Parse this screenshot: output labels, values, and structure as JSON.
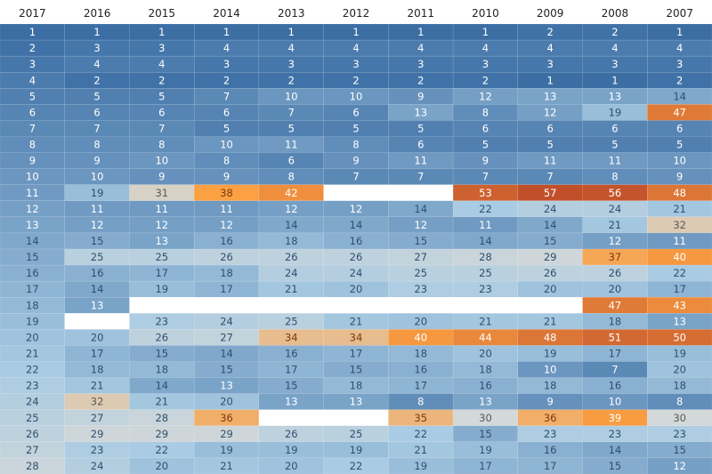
{
  "chart_data": {
    "type": "heatmap",
    "columns": [
      "2017",
      "2016",
      "2015",
      "2014",
      "2013",
      "2012",
      "2011",
      "2010",
      "2009",
      "2008",
      "2007"
    ],
    "color_scale": {
      "low": "#3c6ea4",
      "mid": "#a9cbe3",
      "neutral": "#d3d8d8",
      "warm": "#fba043",
      "high": "#c1502a",
      "empty": "#ffffff"
    },
    "rows": [
      [
        1,
        1,
        1,
        1,
        1,
        1,
        1,
        1,
        2,
        2,
        1
      ],
      [
        2,
        3,
        3,
        4,
        4,
        4,
        4,
        4,
        4,
        4,
        4
      ],
      [
        3,
        4,
        4,
        3,
        3,
        3,
        3,
        3,
        3,
        3,
        3
      ],
      [
        4,
        2,
        2,
        2,
        2,
        2,
        2,
        2,
        1,
        1,
        2
      ],
      [
        5,
        5,
        5,
        7,
        10,
        10,
        9,
        12,
        13,
        13,
        14
      ],
      [
        6,
        6,
        6,
        6,
        7,
        6,
        13,
        8,
        12,
        19,
        47
      ],
      [
        7,
        7,
        7,
        5,
        5,
        5,
        5,
        6,
        6,
        6,
        6
      ],
      [
        8,
        8,
        8,
        10,
        11,
        8,
        6,
        5,
        5,
        5,
        5
      ],
      [
        9,
        9,
        10,
        8,
        6,
        9,
        11,
        9,
        11,
        11,
        10
      ],
      [
        10,
        10,
        9,
        9,
        8,
        7,
        7,
        7,
        7,
        8,
        9
      ],
      [
        11,
        19,
        31,
        38,
        42,
        null,
        null,
        53,
        57,
        56,
        48
      ],
      [
        12,
        11,
        11,
        11,
        12,
        12,
        14,
        22,
        24,
        24,
        21
      ],
      [
        13,
        12,
        12,
        12,
        14,
        14,
        12,
        11,
        14,
        21,
        32
      ],
      [
        14,
        15,
        13,
        16,
        18,
        16,
        15,
        14,
        15,
        12,
        11
      ],
      [
        15,
        25,
        25,
        26,
        26,
        26,
        27,
        28,
        29,
        37,
        40
      ],
      [
        16,
        16,
        17,
        18,
        24,
        24,
        25,
        25,
        26,
        26,
        22
      ],
      [
        17,
        14,
        19,
        17,
        21,
        20,
        23,
        23,
        20,
        20,
        17
      ],
      [
        18,
        13,
        null,
        null,
        null,
        null,
        null,
        null,
        null,
        47,
        43
      ],
      [
        19,
        null,
        23,
        24,
        25,
        21,
        20,
        21,
        21,
        18,
        13
      ],
      [
        20,
        20,
        26,
        27,
        34,
        34,
        40,
        44,
        48,
        51,
        50
      ],
      [
        21,
        17,
        15,
        14,
        16,
        17,
        18,
        20,
        19,
        17,
        19
      ],
      [
        22,
        18,
        18,
        15,
        17,
        15,
        16,
        18,
        10,
        7,
        20
      ],
      [
        23,
        21,
        14,
        13,
        15,
        18,
        17,
        16,
        18,
        16,
        18
      ],
      [
        24,
        32,
        21,
        20,
        13,
        13,
        8,
        13,
        9,
        10,
        8
      ],
      [
        25,
        27,
        28,
        36,
        null,
        null,
        35,
        30,
        36,
        39,
        30
      ],
      [
        26,
        29,
        29,
        29,
        26,
        25,
        22,
        15,
        23,
        23,
        23
      ],
      [
        27,
        23,
        22,
        19,
        19,
        19,
        21,
        19,
        16,
        14,
        15
      ],
      [
        28,
        24,
        20,
        21,
        20,
        22,
        19,
        17,
        17,
        15,
        12
      ]
    ]
  }
}
